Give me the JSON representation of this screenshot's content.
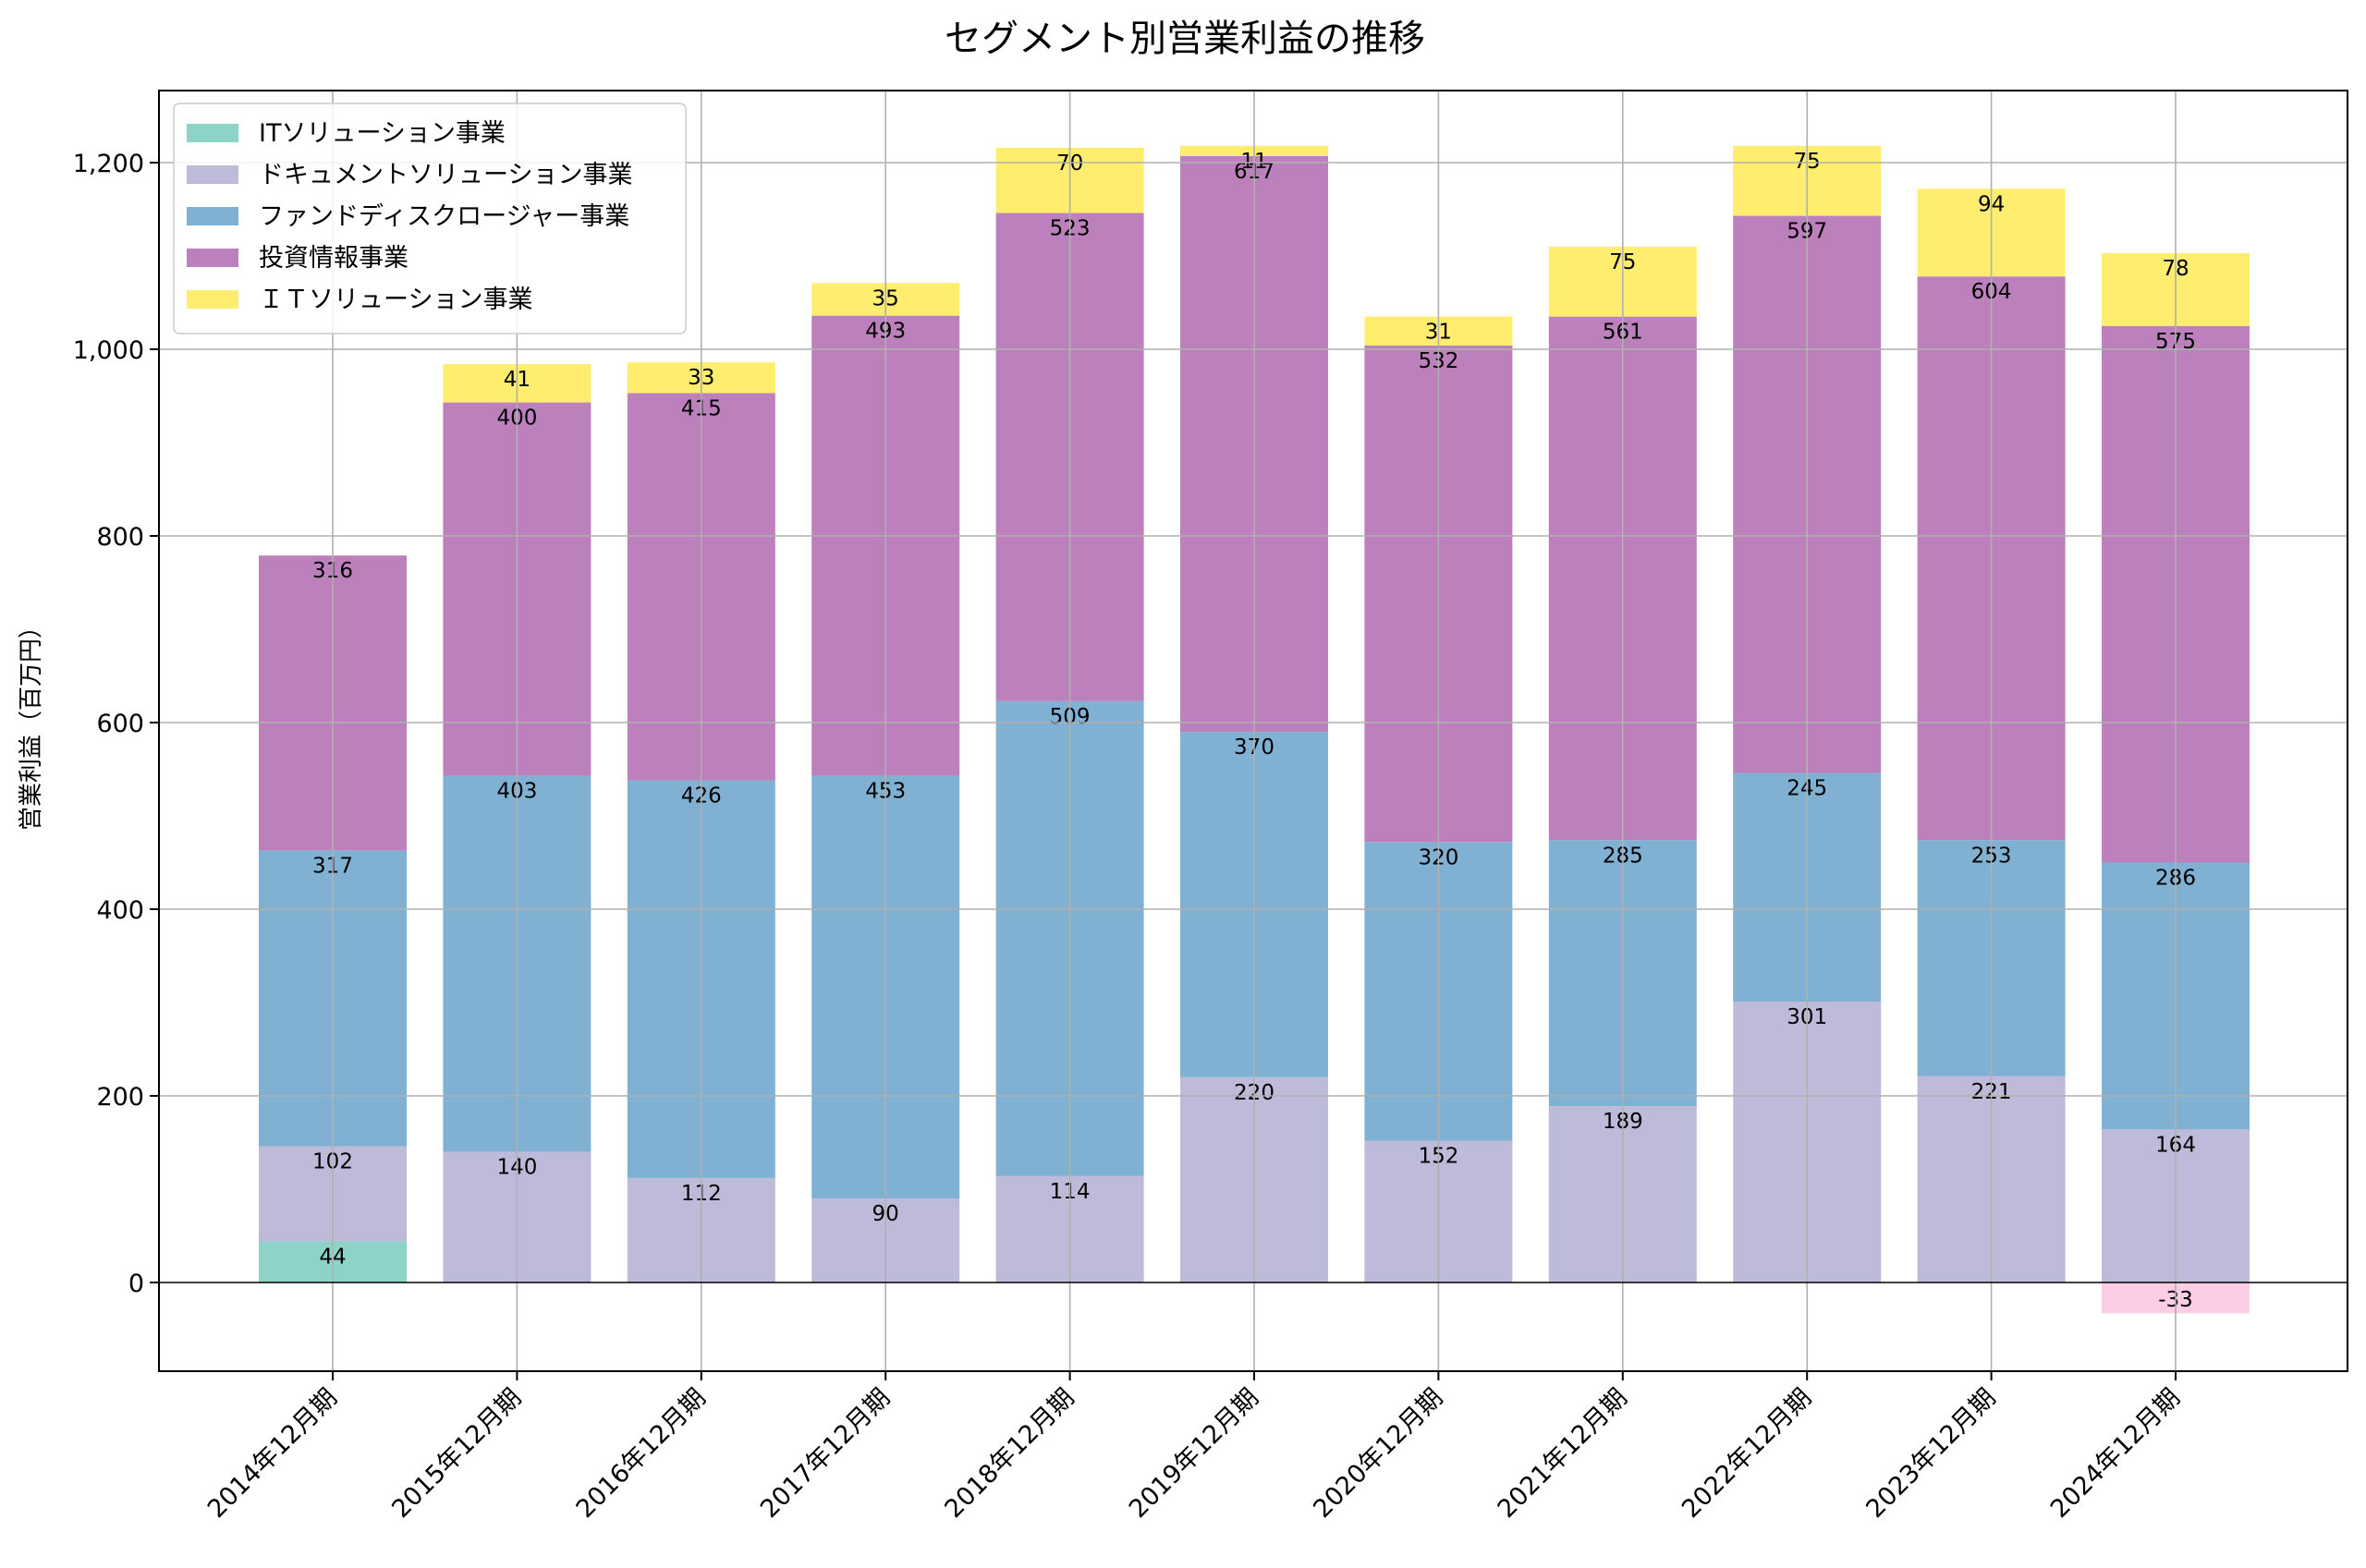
{
  "chart_data": {
    "type": "bar",
    "stacked": true,
    "title": "セグメント別営業利益の推移",
    "xlabel": "",
    "ylabel": "営業利益（百万円）",
    "ylim": [
      -95,
      1280
    ],
    "yticks": [
      0,
      200,
      400,
      600,
      800,
      1000,
      1200
    ],
    "ytick_labels": [
      "0",
      "200",
      "400",
      "600",
      "800",
      "1,000",
      "1,200"
    ],
    "grid": true,
    "legend_position": "top-left",
    "categories": [
      "2014年12月期",
      "2015年12月期",
      "2016年12月期",
      "2017年12月期",
      "2018年12月期",
      "2019年12月期",
      "2020年12月期",
      "2021年12月期",
      "2022年12月期",
      "2023年12月期",
      "2024年12月期"
    ],
    "series": [
      {
        "name": "ITソリューション事業",
        "color": "#8dd3c7",
        "values": [
          44,
          null,
          null,
          null,
          null,
          null,
          null,
          null,
          null,
          null,
          null
        ]
      },
      {
        "name": "ドキュメントソリューション事業",
        "color": "#bebada",
        "values": [
          102,
          140,
          112,
          90,
          114,
          220,
          152,
          189,
          301,
          221,
          164
        ]
      },
      {
        "name": "ファンドディスクロージャー事業",
        "color": "#80b1d3",
        "values": [
          317,
          403,
          426,
          453,
          509,
          370,
          320,
          285,
          245,
          253,
          286
        ]
      },
      {
        "name": "投資情報事業",
        "color": "#bc80bd",
        "values": [
          316,
          400,
          415,
          493,
          523,
          617,
          532,
          561,
          597,
          604,
          575
        ]
      },
      {
        "name": "ＩＴソリューション事業",
        "color": "#ffed6f",
        "values": [
          null,
          41,
          33,
          35,
          70,
          11,
          31,
          75,
          75,
          94,
          78
        ]
      },
      {
        "name": "",
        "color": "#fccde5",
        "values": [
          null,
          null,
          null,
          null,
          null,
          null,
          null,
          null,
          null,
          null,
          -33
        ]
      }
    ]
  }
}
